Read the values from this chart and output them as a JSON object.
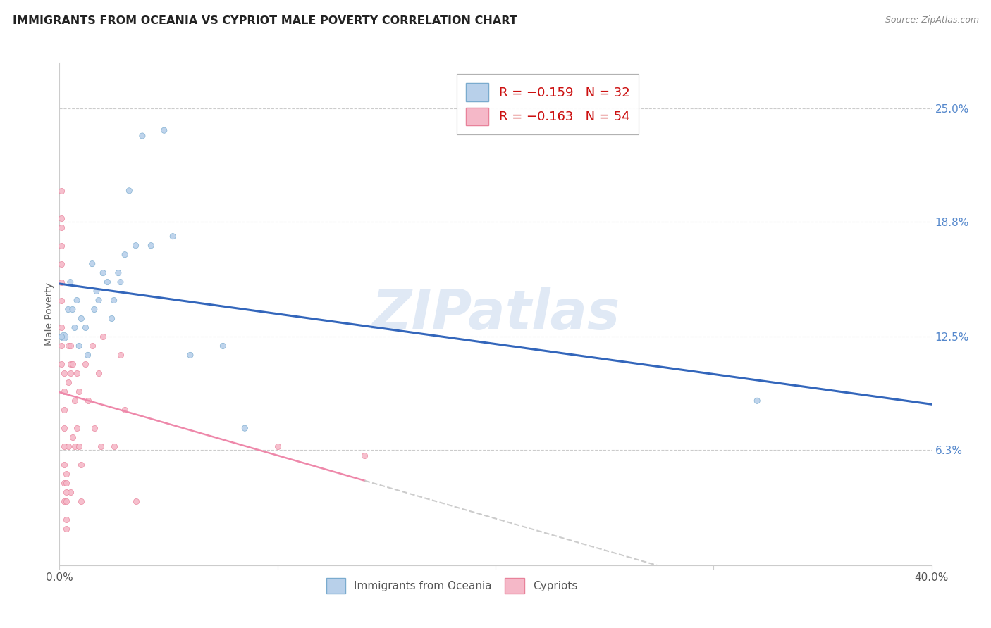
{
  "title": "IMMIGRANTS FROM OCEANIA VS CYPRIOT MALE POVERTY CORRELATION CHART",
  "source": "Source: ZipAtlas.com",
  "ylabel": "Male Poverty",
  "ytick_labels": [
    "25.0%",
    "18.8%",
    "12.5%",
    "6.3%"
  ],
  "ytick_values": [
    0.25,
    0.188,
    0.125,
    0.063
  ],
  "xlim": [
    0.0,
    0.4
  ],
  "ylim": [
    0.0,
    0.275
  ],
  "watermark": "ZIPatlas",
  "oceania_color": "#b8d0ea",
  "cypriot_color": "#f5b8c8",
  "oceania_edge": "#7aabce",
  "cypriot_edge": "#e8829a",
  "trendline_oceania_color": "#3366bb",
  "trendline_cypriot_color": "#ee88aa",
  "trendline_cypriot_dashed_color": "#cccccc",
  "oceania_x": [
    0.002,
    0.004,
    0.005,
    0.006,
    0.007,
    0.008,
    0.009,
    0.01,
    0.012,
    0.013,
    0.015,
    0.016,
    0.017,
    0.018,
    0.02,
    0.022,
    0.024,
    0.025,
    0.027,
    0.028,
    0.03,
    0.032,
    0.035,
    0.038,
    0.042,
    0.048,
    0.052,
    0.06,
    0.075,
    0.085,
    0.32,
    0.001
  ],
  "oceania_y": [
    0.125,
    0.14,
    0.155,
    0.14,
    0.13,
    0.145,
    0.12,
    0.135,
    0.13,
    0.115,
    0.165,
    0.14,
    0.15,
    0.145,
    0.16,
    0.155,
    0.135,
    0.145,
    0.16,
    0.155,
    0.17,
    0.205,
    0.175,
    0.235,
    0.175,
    0.238,
    0.18,
    0.115,
    0.12,
    0.075,
    0.09,
    0.125
  ],
  "oceania_sizes": [
    80,
    35,
    35,
    35,
    35,
    35,
    35,
    35,
    35,
    35,
    35,
    35,
    35,
    35,
    35,
    35,
    35,
    35,
    35,
    35,
    35,
    35,
    35,
    35,
    35,
    35,
    35,
    35,
    35,
    35,
    35,
    35
  ],
  "cypriot_x": [
    0.001,
    0.001,
    0.001,
    0.001,
    0.001,
    0.001,
    0.001,
    0.001,
    0.001,
    0.001,
    0.002,
    0.002,
    0.002,
    0.002,
    0.002,
    0.002,
    0.002,
    0.002,
    0.003,
    0.003,
    0.003,
    0.003,
    0.003,
    0.003,
    0.004,
    0.004,
    0.004,
    0.005,
    0.005,
    0.005,
    0.005,
    0.006,
    0.006,
    0.007,
    0.007,
    0.008,
    0.008,
    0.009,
    0.009,
    0.01,
    0.01,
    0.012,
    0.013,
    0.015,
    0.016,
    0.018,
    0.019,
    0.02,
    0.025,
    0.028,
    0.03,
    0.035,
    0.1,
    0.14
  ],
  "cypriot_y": [
    0.205,
    0.19,
    0.185,
    0.175,
    0.165,
    0.155,
    0.145,
    0.13,
    0.12,
    0.11,
    0.105,
    0.095,
    0.085,
    0.075,
    0.065,
    0.055,
    0.045,
    0.035,
    0.05,
    0.045,
    0.04,
    0.035,
    0.025,
    0.02,
    0.12,
    0.1,
    0.065,
    0.12,
    0.11,
    0.105,
    0.04,
    0.11,
    0.07,
    0.09,
    0.065,
    0.105,
    0.075,
    0.095,
    0.065,
    0.055,
    0.035,
    0.11,
    0.09,
    0.12,
    0.075,
    0.105,
    0.065,
    0.125,
    0.065,
    0.115,
    0.085,
    0.035,
    0.065,
    0.06
  ],
  "cypriot_size": 35,
  "background_color": "#ffffff",
  "grid_color": "#cccccc",
  "legend1_label": "R = -0.159   N = 32",
  "legend2_label": "R = -0.163   N = 54",
  "bottom_legend1": "Immigrants from Oceania",
  "bottom_legend2": "Cypriots"
}
